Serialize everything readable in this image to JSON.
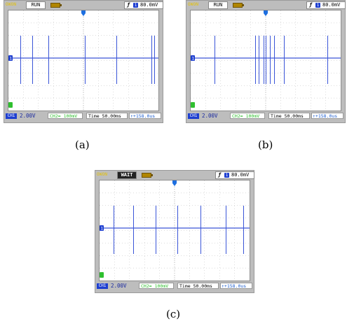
{
  "colors": {
    "trace": "#3a55d8",
    "grid": "#b8b8b8",
    "brand": "#e6c200",
    "ch2": "#2fbf2f"
  },
  "panels": [
    {
      "id": "a",
      "brand": "OWON",
      "status": "RUN",
      "status_inverted": false,
      "trigger_edge": "ƒ",
      "trigger_channel": "1",
      "trigger_level": "80.0mV",
      "ch1_label": "CH1",
      "ch1_scale": "2.00V",
      "ch2_label": "CH2≃",
      "ch2_scale": "100mV",
      "time_label": "Time 50.00ms",
      "pos_label": "↑+158.0us",
      "caption": "(a)",
      "pulses": [
        0.08,
        0.16,
        0.265,
        0.51,
        0.72,
        0.955,
        0.972
      ]
    },
    {
      "id": "b",
      "brand": "OWON",
      "status": "RUN",
      "status_inverted": false,
      "trigger_edge": "ƒ",
      "trigger_channel": "1",
      "trigger_level": "80.0mV",
      "ch1_label": "CH1",
      "ch1_scale": "2.00V",
      "ch2_label": "CH2≃",
      "ch2_scale": "100mV",
      "time_label": "Time 50.00ms",
      "pos_label": "↑+158.0us",
      "caption": "(b)",
      "pulses": [
        0.16,
        0.43,
        0.455,
        0.485,
        0.5,
        0.53,
        0.555,
        0.62,
        0.91
      ]
    },
    {
      "id": "c",
      "brand": "OWON",
      "status": "WAIT",
      "status_inverted": true,
      "trigger_edge": "ƒ",
      "trigger_channel": "1",
      "trigger_level": "80.0mV",
      "ch1_label": "CH1",
      "ch1_scale": "2.00V",
      "ch2_label": "CH2≃",
      "ch2_scale": "100mV",
      "time_label": "Time 50.00ms",
      "pos_label": "↑+158.0us",
      "caption": "(c)",
      "pulses": [
        0.095,
        0.225,
        0.375,
        0.52,
        0.675,
        0.84,
        0.96
      ]
    }
  ]
}
